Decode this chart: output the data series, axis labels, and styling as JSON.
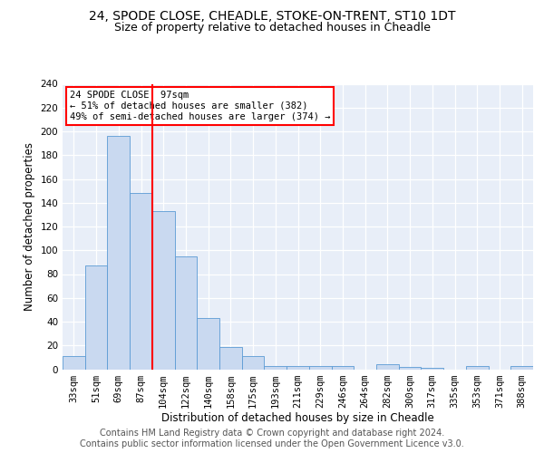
{
  "title1": "24, SPODE CLOSE, CHEADLE, STOKE-ON-TRENT, ST10 1DT",
  "title2": "Size of property relative to detached houses in Cheadle",
  "xlabel": "Distribution of detached houses by size in Cheadle",
  "ylabel": "Number of detached properties",
  "categories": [
    "33sqm",
    "51sqm",
    "69sqm",
    "87sqm",
    "104sqm",
    "122sqm",
    "140sqm",
    "158sqm",
    "175sqm",
    "193sqm",
    "211sqm",
    "229sqm",
    "246sqm",
    "264sqm",
    "282sqm",
    "300sqm",
    "317sqm",
    "335sqm",
    "353sqm",
    "371sqm",
    "388sqm"
  ],
  "values": [
    11,
    87,
    196,
    148,
    133,
    95,
    43,
    19,
    11,
    3,
    3,
    3,
    3,
    0,
    4,
    2,
    1,
    0,
    3,
    0,
    3
  ],
  "bar_color": "#c9d9f0",
  "bar_edge_color": "#5b9bd5",
  "bar_width": 1.0,
  "vline_x": 3.5,
  "vline_color": "red",
  "annotation_text": "24 SPODE CLOSE: 97sqm\n← 51% of detached houses are smaller (382)\n49% of semi-detached houses are larger (374) →",
  "annotation_box_color": "white",
  "annotation_box_edge_color": "red",
  "ylim": [
    0,
    240
  ],
  "yticks": [
    0,
    20,
    40,
    60,
    80,
    100,
    120,
    140,
    160,
    180,
    200,
    220,
    240
  ],
  "footer_text": "Contains HM Land Registry data © Crown copyright and database right 2024.\nContains public sector information licensed under the Open Government Licence v3.0.",
  "bg_color": "#e8eef8",
  "title1_fontsize": 10,
  "title2_fontsize": 9,
  "xlabel_fontsize": 8.5,
  "ylabel_fontsize": 8.5,
  "tick_fontsize": 7.5,
  "footer_fontsize": 7,
  "annot_fontsize": 7.5
}
